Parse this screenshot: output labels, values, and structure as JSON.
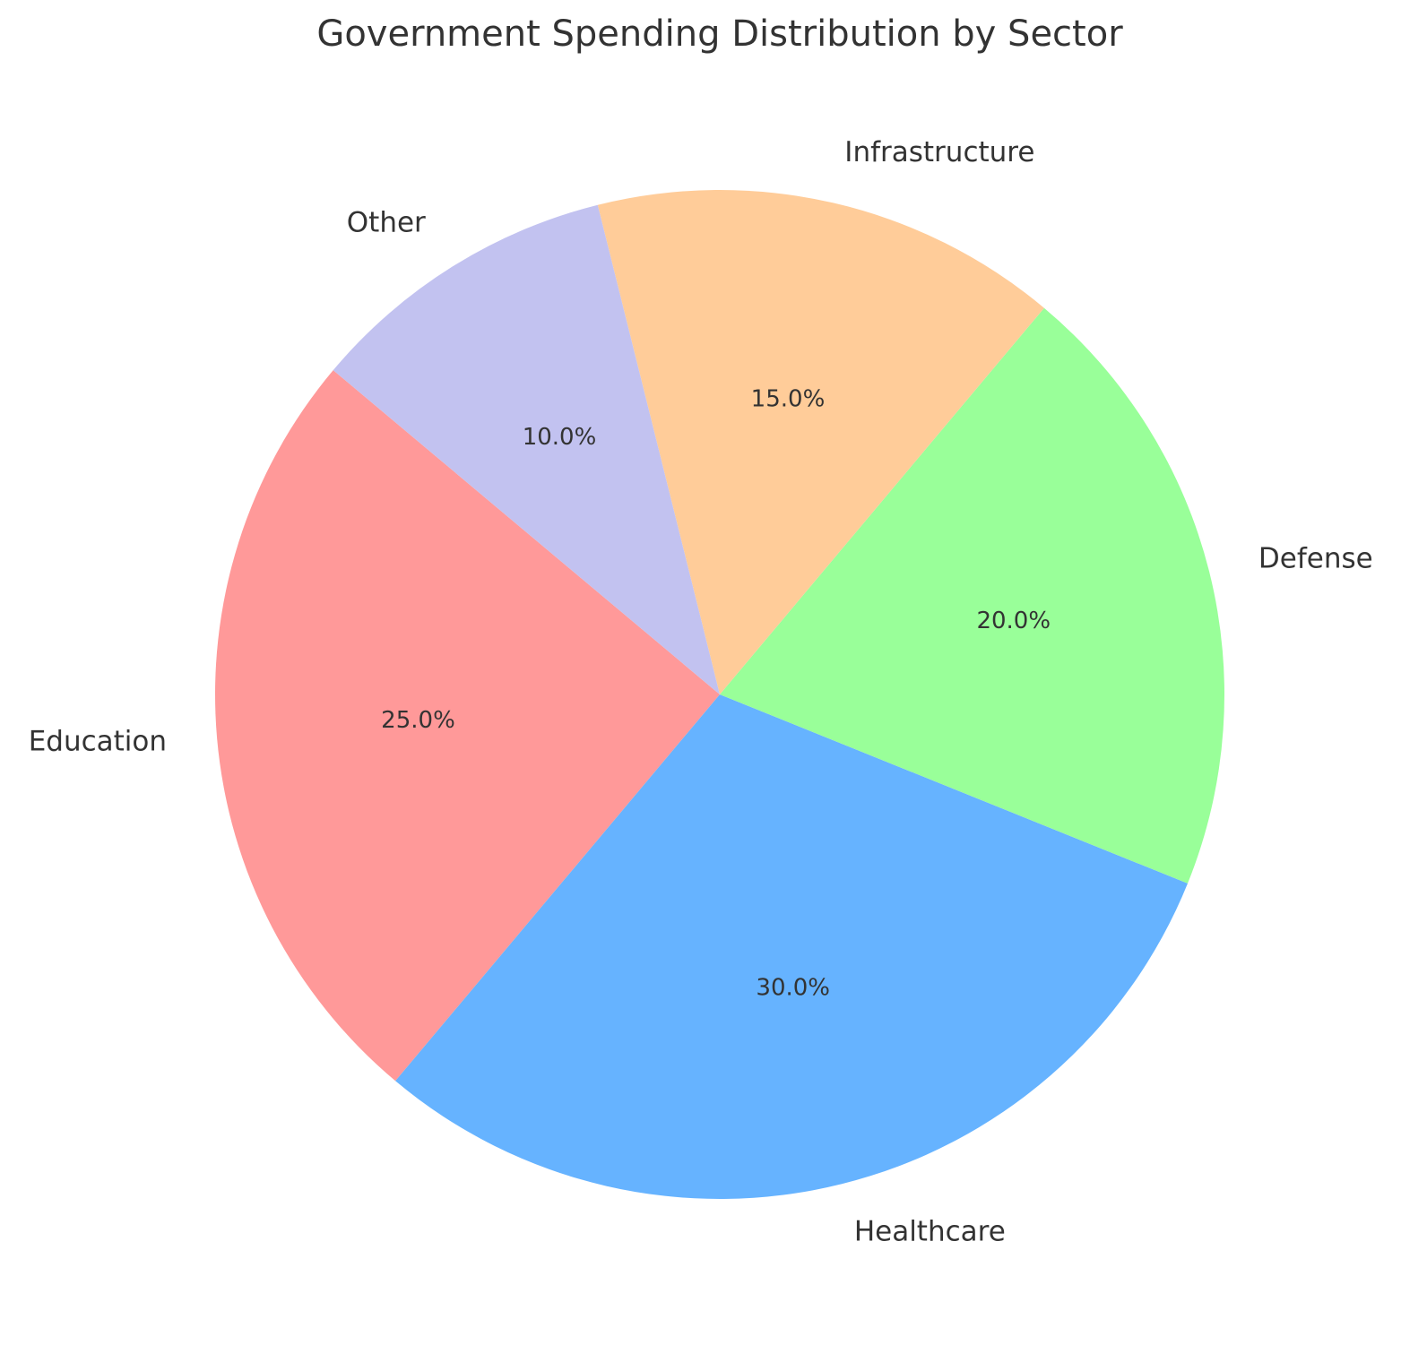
{
  "chart_data": {
    "type": "pie",
    "title": "Government Spending Distribution by Sector",
    "categories": [
      "Education",
      "Healthcare",
      "Defense",
      "Infrastructure",
      "Other"
    ],
    "values": [
      25,
      30,
      20,
      15,
      10
    ],
    "value_labels": [
      "25.0%",
      "30.0%",
      "20.0%",
      "15.0%",
      "10.0%"
    ],
    "colors": [
      "#ff9999",
      "#66b3ff",
      "#99ff99",
      "#ffcc99",
      "#c2c2f0"
    ]
  }
}
